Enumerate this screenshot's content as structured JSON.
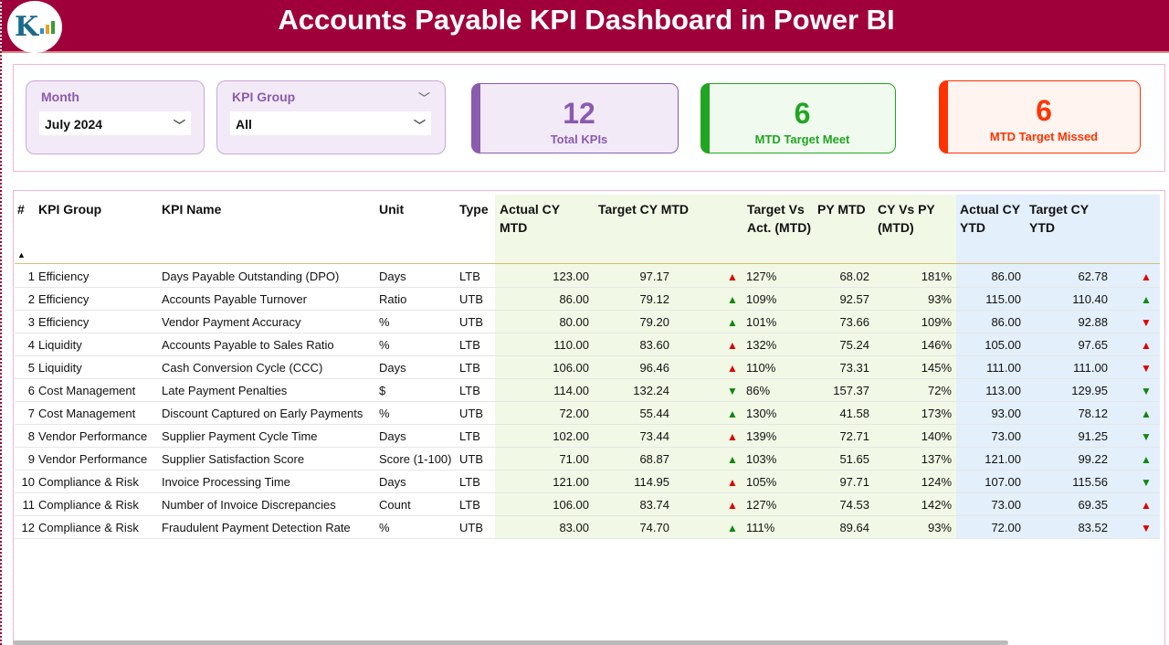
{
  "header": {
    "title": "Accounts Payable KPI Dashboard in Power BI",
    "logo_text": "K"
  },
  "filters": {
    "month": {
      "label": "Month",
      "value": "July 2024"
    },
    "kpi_group": {
      "label": "KPI Group",
      "value": "All"
    }
  },
  "cards": [
    {
      "value": "12",
      "label": "Total KPIs",
      "color": "#8a5bb0"
    },
    {
      "value": "6",
      "label": "MTD Target Meet",
      "color": "#22a522"
    },
    {
      "value": "6",
      "label": "MTD Target Missed",
      "color": "#ff3300"
    }
  ],
  "table": {
    "columns": [
      "#",
      "KPI Group",
      "KPI Name",
      "Unit",
      "Type",
      "Actual CY MTD",
      "Target CY MTD",
      "Target Vs Act. (MTD)",
      "PY MTD",
      "CY Vs PY (MTD)",
      "Actual CY YTD",
      "Target CY YTD"
    ],
    "sort_indicator": "▲",
    "rows": [
      {
        "n": "1",
        "group": "Efficiency",
        "name": "Days Payable Outstanding (DPO)",
        "unit": "Days",
        "type": "LTB",
        "act_mtd": "123.00",
        "tgt_mtd": "97.17",
        "mtd_icon": "up-red",
        "tva": "127%",
        "py_mtd": "68.02",
        "cyvpy": "181%",
        "act_ytd": "86.00",
        "tgt_ytd": "62.78",
        "ytd_icon": "up-red"
      },
      {
        "n": "2",
        "group": "Efficiency",
        "name": "Accounts Payable Turnover",
        "unit": "Ratio",
        "type": "UTB",
        "act_mtd": "86.00",
        "tgt_mtd": "79.12",
        "mtd_icon": "up-green",
        "tva": "109%",
        "py_mtd": "92.57",
        "cyvpy": "93%",
        "act_ytd": "115.00",
        "tgt_ytd": "110.40",
        "ytd_icon": "up-green"
      },
      {
        "n": "3",
        "group": "Efficiency",
        "name": "Vendor Payment Accuracy",
        "unit": "%",
        "type": "UTB",
        "act_mtd": "80.00",
        "tgt_mtd": "79.20",
        "mtd_icon": "up-green",
        "tva": "101%",
        "py_mtd": "73.66",
        "cyvpy": "109%",
        "act_ytd": "86.00",
        "tgt_ytd": "92.88",
        "ytd_icon": "down-red"
      },
      {
        "n": "4",
        "group": "Liquidity",
        "name": "Accounts Payable to Sales Ratio",
        "unit": "%",
        "type": "LTB",
        "act_mtd": "110.00",
        "tgt_mtd": "83.60",
        "mtd_icon": "up-red",
        "tva": "132%",
        "py_mtd": "75.24",
        "cyvpy": "146%",
        "act_ytd": "105.00",
        "tgt_ytd": "97.65",
        "ytd_icon": "up-red"
      },
      {
        "n": "5",
        "group": "Liquidity",
        "name": "Cash Conversion Cycle (CCC)",
        "unit": "Days",
        "type": "LTB",
        "act_mtd": "106.00",
        "tgt_mtd": "96.46",
        "mtd_icon": "up-red",
        "tva": "110%",
        "py_mtd": "73.31",
        "cyvpy": "145%",
        "act_ytd": "111.00",
        "tgt_ytd": "111.00",
        "ytd_icon": "down-red"
      },
      {
        "n": "6",
        "group": "Cost Management",
        "name": "Late Payment Penalties",
        "unit": "$",
        "type": "LTB",
        "act_mtd": "114.00",
        "tgt_mtd": "132.24",
        "mtd_icon": "down-green",
        "tva": "86%",
        "py_mtd": "157.37",
        "cyvpy": "72%",
        "act_ytd": "113.00",
        "tgt_ytd": "129.95",
        "ytd_icon": "down-green"
      },
      {
        "n": "7",
        "group": "Cost Management",
        "name": "Discount Captured on Early Payments",
        "unit": "%",
        "type": "UTB",
        "act_mtd": "72.00",
        "tgt_mtd": "55.44",
        "mtd_icon": "up-green",
        "tva": "130%",
        "py_mtd": "41.58",
        "cyvpy": "173%",
        "act_ytd": "93.00",
        "tgt_ytd": "78.12",
        "ytd_icon": "up-green"
      },
      {
        "n": "8",
        "group": "Vendor Performance",
        "name": "Supplier Payment Cycle Time",
        "unit": "Days",
        "type": "LTB",
        "act_mtd": "102.00",
        "tgt_mtd": "73.44",
        "mtd_icon": "up-red",
        "tva": "139%",
        "py_mtd": "72.71",
        "cyvpy": "140%",
        "act_ytd": "73.00",
        "tgt_ytd": "91.25",
        "ytd_icon": "down-green"
      },
      {
        "n": "9",
        "group": "Vendor Performance",
        "name": "Supplier Satisfaction Score",
        "unit": "Score (1-100)",
        "type": "UTB",
        "act_mtd": "71.00",
        "tgt_mtd": "68.87",
        "mtd_icon": "up-green",
        "tva": "103%",
        "py_mtd": "51.65",
        "cyvpy": "137%",
        "act_ytd": "121.00",
        "tgt_ytd": "99.22",
        "ytd_icon": "up-green"
      },
      {
        "n": "10",
        "group": "Compliance & Risk",
        "name": "Invoice Processing Time",
        "unit": "Days",
        "type": "LTB",
        "act_mtd": "121.00",
        "tgt_mtd": "114.95",
        "mtd_icon": "up-red",
        "tva": "105%",
        "py_mtd": "97.71",
        "cyvpy": "124%",
        "act_ytd": "107.00",
        "tgt_ytd": "115.56",
        "ytd_icon": "down-green"
      },
      {
        "n": "11",
        "group": "Compliance & Risk",
        "name": "Number of Invoice Discrepancies",
        "unit": "Count",
        "type": "LTB",
        "act_mtd": "106.00",
        "tgt_mtd": "83.74",
        "mtd_icon": "up-red",
        "tva": "127%",
        "py_mtd": "74.53",
        "cyvpy": "142%",
        "act_ytd": "73.00",
        "tgt_ytd": "69.35",
        "ytd_icon": "up-red"
      },
      {
        "n": "12",
        "group": "Compliance & Risk",
        "name": "Fraudulent Payment Detection Rate",
        "unit": "%",
        "type": "UTB",
        "act_mtd": "83.00",
        "tgt_mtd": "74.70",
        "mtd_icon": "up-green",
        "tva": "111%",
        "py_mtd": "89.64",
        "cyvpy": "93%",
        "act_ytd": "72.00",
        "tgt_ytd": "83.52",
        "ytd_icon": "down-red"
      }
    ]
  }
}
